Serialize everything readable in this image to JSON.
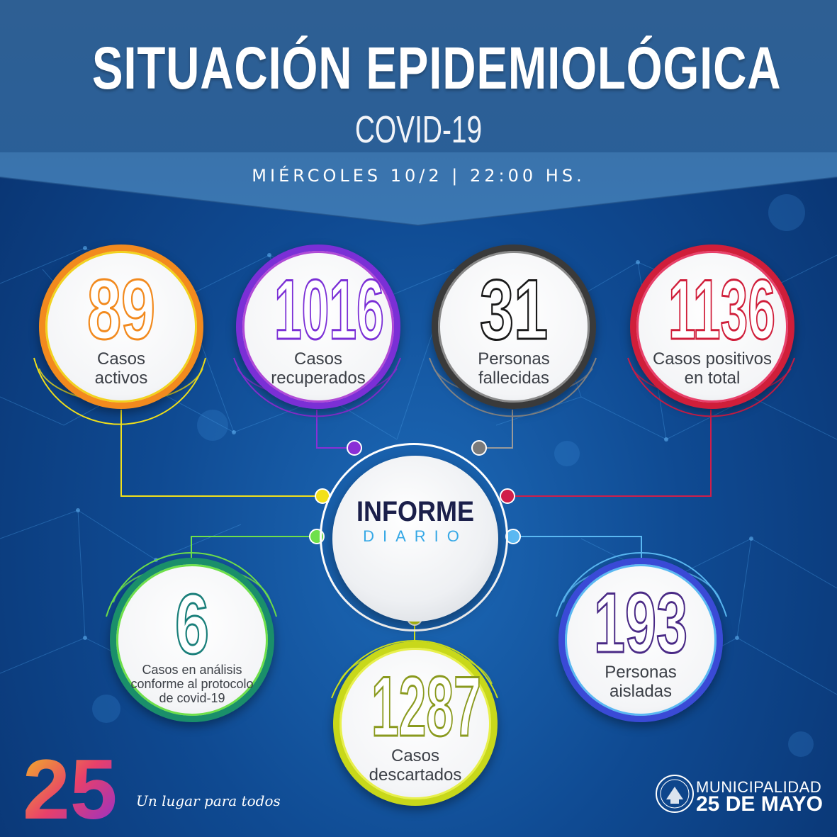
{
  "header": {
    "title": "SITUACIÓN EPIDEMIOLÓGICA",
    "subtitle": "COVID-19",
    "date": "MIÉRCOLES 10/2 | 22:00 HS."
  },
  "center": {
    "line1": "INFORME",
    "line2": "DIARIO"
  },
  "stats": [
    {
      "id": "activos",
      "value": "89",
      "label1": "Casos",
      "label2": "activos",
      "label3": "",
      "color": "#f28a1e"
    },
    {
      "id": "recuperados",
      "value": "1016",
      "label1": "Casos",
      "label2": "recuperados",
      "label3": "",
      "color": "#7b2fd6"
    },
    {
      "id": "fallecidas",
      "value": "31",
      "label1": "Personas",
      "label2": "fallecidas",
      "label3": "",
      "color": "#2b2b2b"
    },
    {
      "id": "positivos",
      "value": "1136",
      "label1": "Casos positivos",
      "label2": "en total",
      "label3": "",
      "color": "#d01e3a"
    },
    {
      "id": "analisis",
      "value": "6",
      "label1": "Casos en análisis",
      "label2": "conforme al protocolo",
      "label3": "de covid-19",
      "color": "#1a7f7a"
    },
    {
      "id": "descartados",
      "value": "1287",
      "label1": "Casos",
      "label2": "descartados",
      "label3": "",
      "color": "#8a9a1e"
    },
    {
      "id": "aisladas",
      "value": "193",
      "label1": "Personas",
      "label2": "aisladas",
      "label3": "",
      "color": "#4a2a86"
    }
  ],
  "colors": {
    "yellow": "#f2e01a",
    "purple": "#8a2fd6",
    "gray": "#6e6e6e",
    "red": "#d01e4a",
    "green": "#6ee04a",
    "lightblue": "#5ab8f2",
    "lime": "#d6e81a"
  },
  "footer": {
    "logo_number": "25",
    "tagline": "Un lugar para todos",
    "municipality_line1": "MUNICIPALIDAD",
    "municipality_line2": "25 DE MAYO",
    "seal_icon": "municipal-seal-icon"
  }
}
